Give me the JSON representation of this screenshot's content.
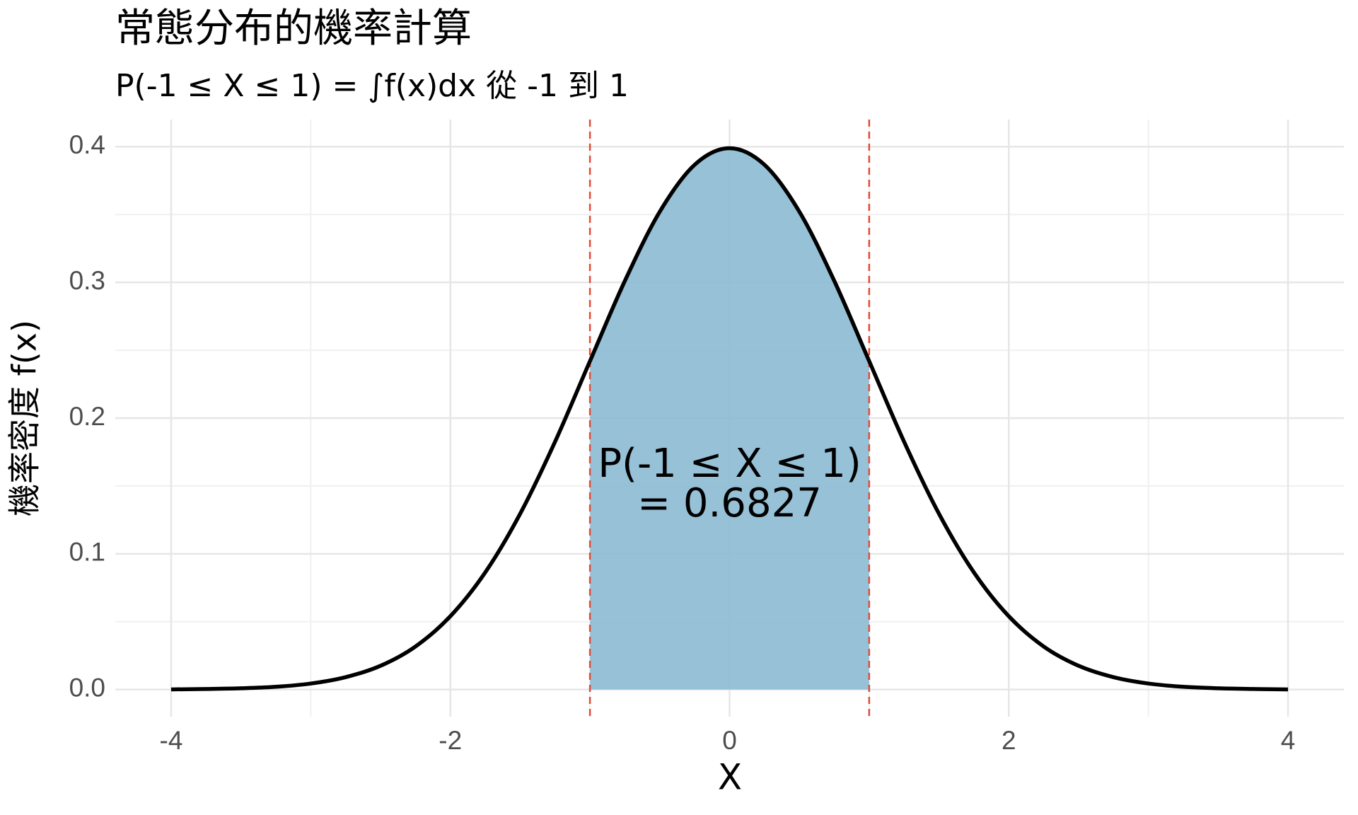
{
  "chart_data": {
    "type": "area-line",
    "title": "常態分布的機率計算",
    "subtitle": "P(-1 ≤ X ≤ 1) = ∫f(x)dx 從 -1 到 1",
    "x_label": "X",
    "y_label": "機率密度 f(x)",
    "x": [
      -4,
      -3.75,
      -3.5,
      -3.25,
      -3,
      -2.75,
      -2.5,
      -2.25,
      -2,
      -1.75,
      -1.5,
      -1.25,
      -1,
      -0.75,
      -0.5,
      -0.25,
      0,
      0.25,
      0.5,
      0.75,
      1,
      1.25,
      1.5,
      1.75,
      2,
      2.25,
      2.5,
      2.75,
      3,
      3.25,
      3.5,
      3.75,
      4
    ],
    "values": [
      0.0001,
      0.0004,
      0.0009,
      0.002,
      0.0044,
      0.0091,
      0.0175,
      0.0317,
      0.054,
      0.0863,
      0.1295,
      0.1826,
      0.242,
      0.3011,
      0.3521,
      0.3867,
      0.3989,
      0.3867,
      0.3521,
      0.3011,
      0.242,
      0.1826,
      0.1295,
      0.0863,
      0.054,
      0.0317,
      0.0175,
      0.0091,
      0.0044,
      0.002,
      0.0009,
      0.0004,
      0.0001
    ],
    "color": "#000000",
    "shade": {
      "from": -1,
      "to": 1,
      "color": "#8bbad3"
    },
    "vlines": [
      -1,
      1
    ],
    "vline_color": "#e34a33",
    "annotation": {
      "lines": [
        "P(-1 ≤ X ≤ 1)",
        "= 0.6827"
      ],
      "x": 0,
      "y": 0.15
    },
    "xlim": [
      -4.4,
      4.4
    ],
    "ylim": [
      -0.02,
      0.42
    ],
    "xticks": [
      -4,
      -2,
      0,
      2,
      4
    ],
    "yticks": [
      {
        "value": 0,
        "label": "0.0"
      },
      0.1,
      0.2,
      0.3,
      0.4
    ],
    "grid": true
  }
}
